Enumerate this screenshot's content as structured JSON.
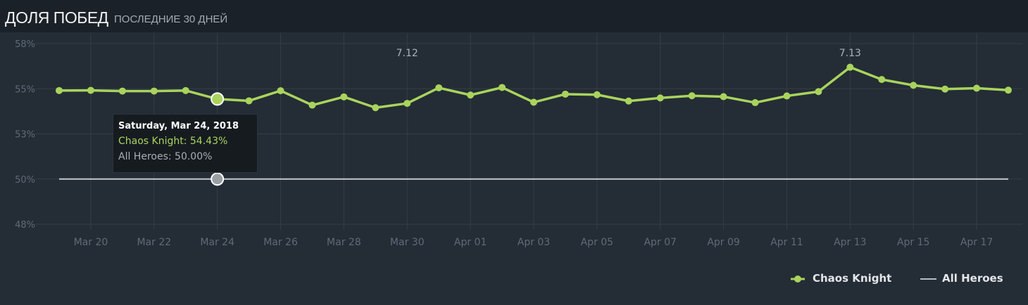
{
  "header": {
    "title": "ДОЛЯ ПОБЕД",
    "subtitle": "ПОСЛЕДНИЕ 30 ДНЕЙ"
  },
  "tooltip": {
    "date": "Saturday, Mar 24, 2018",
    "line1": "Chaos Knight: 54.43%",
    "line2": "All Heroes: 50.00%"
  },
  "legend": {
    "items": [
      {
        "label": "Chaos Knight",
        "color": "#a9d45c"
      },
      {
        "label": "All Heroes",
        "color": "#b7bcc1"
      }
    ]
  },
  "colors": {
    "hero_line": "#a9d45c",
    "baseline": "#c6cacd",
    "grid": "#343d48",
    "axis_text": "#5f6b77",
    "patch_text": "#aab2ba"
  },
  "chart_data": {
    "type": "line",
    "title": "ДОЛЯ ПОБЕД",
    "subtitle": "ПОСЛЕДНИЕ 30 ДНЕЙ",
    "ylim": [
      47.5,
      57.5
    ],
    "y_ticks": [
      {
        "value": 57.5,
        "label": "58%"
      },
      {
        "value": 55,
        "label": "55%"
      },
      {
        "value": 52.5,
        "label": "53%"
      },
      {
        "value": 50,
        "label": "50%"
      },
      {
        "value": 47.5,
        "label": "48%"
      }
    ],
    "x": [
      "Mar 19",
      "Mar 20",
      "Mar 21",
      "Mar 22",
      "Mar 23",
      "Mar 24",
      "Mar 25",
      "Mar 26",
      "Mar 27",
      "Mar 28",
      "Mar 29",
      "Mar 30",
      "Mar 31",
      "Apr 01",
      "Apr 02",
      "Apr 03",
      "Apr 04",
      "Apr 05",
      "Apr 06",
      "Apr 07",
      "Apr 08",
      "Apr 09",
      "Apr 10",
      "Apr 11",
      "Apr 12",
      "Apr 13",
      "Apr 14",
      "Apr 15",
      "Apr 16",
      "Apr 17",
      "Apr 18"
    ],
    "x_tick_labels": [
      "Mar 20",
      "Mar 22",
      "Mar 24",
      "Mar 26",
      "Mar 28",
      "Mar 30",
      "Apr 01",
      "Apr 03",
      "Apr 05",
      "Apr 07",
      "Apr 09",
      "Apr 11",
      "Apr 13",
      "Apr 15",
      "Apr 17"
    ],
    "series": [
      {
        "name": "Chaos Knight",
        "color": "#a9d45c",
        "values": [
          54.9,
          54.91,
          54.87,
          54.87,
          54.9,
          54.43,
          54.33,
          54.89,
          54.09,
          54.55,
          53.95,
          54.19,
          55.05,
          54.65,
          55.07,
          54.25,
          54.7,
          54.67,
          54.32,
          54.49,
          54.61,
          54.56,
          54.23,
          54.6,
          54.84,
          56.19,
          55.51,
          55.19,
          54.98,
          55.03,
          54.92
        ]
      },
      {
        "name": "All Heroes",
        "color": "#c6cacd",
        "values": [
          50,
          50,
          50,
          50,
          50,
          50,
          50,
          50,
          50,
          50,
          50,
          50,
          50,
          50,
          50,
          50,
          50,
          50,
          50,
          50,
          50,
          50,
          50,
          50,
          50,
          50,
          50,
          50,
          50,
          50,
          50
        ]
      }
    ],
    "annotations": [
      {
        "text": "7.12",
        "x": "Mar 30"
      },
      {
        "text": "7.13",
        "x": "Apr 13"
      }
    ],
    "highlighted_point": "Mar 24",
    "grid": true,
    "legend_position": "bottom-right"
  }
}
